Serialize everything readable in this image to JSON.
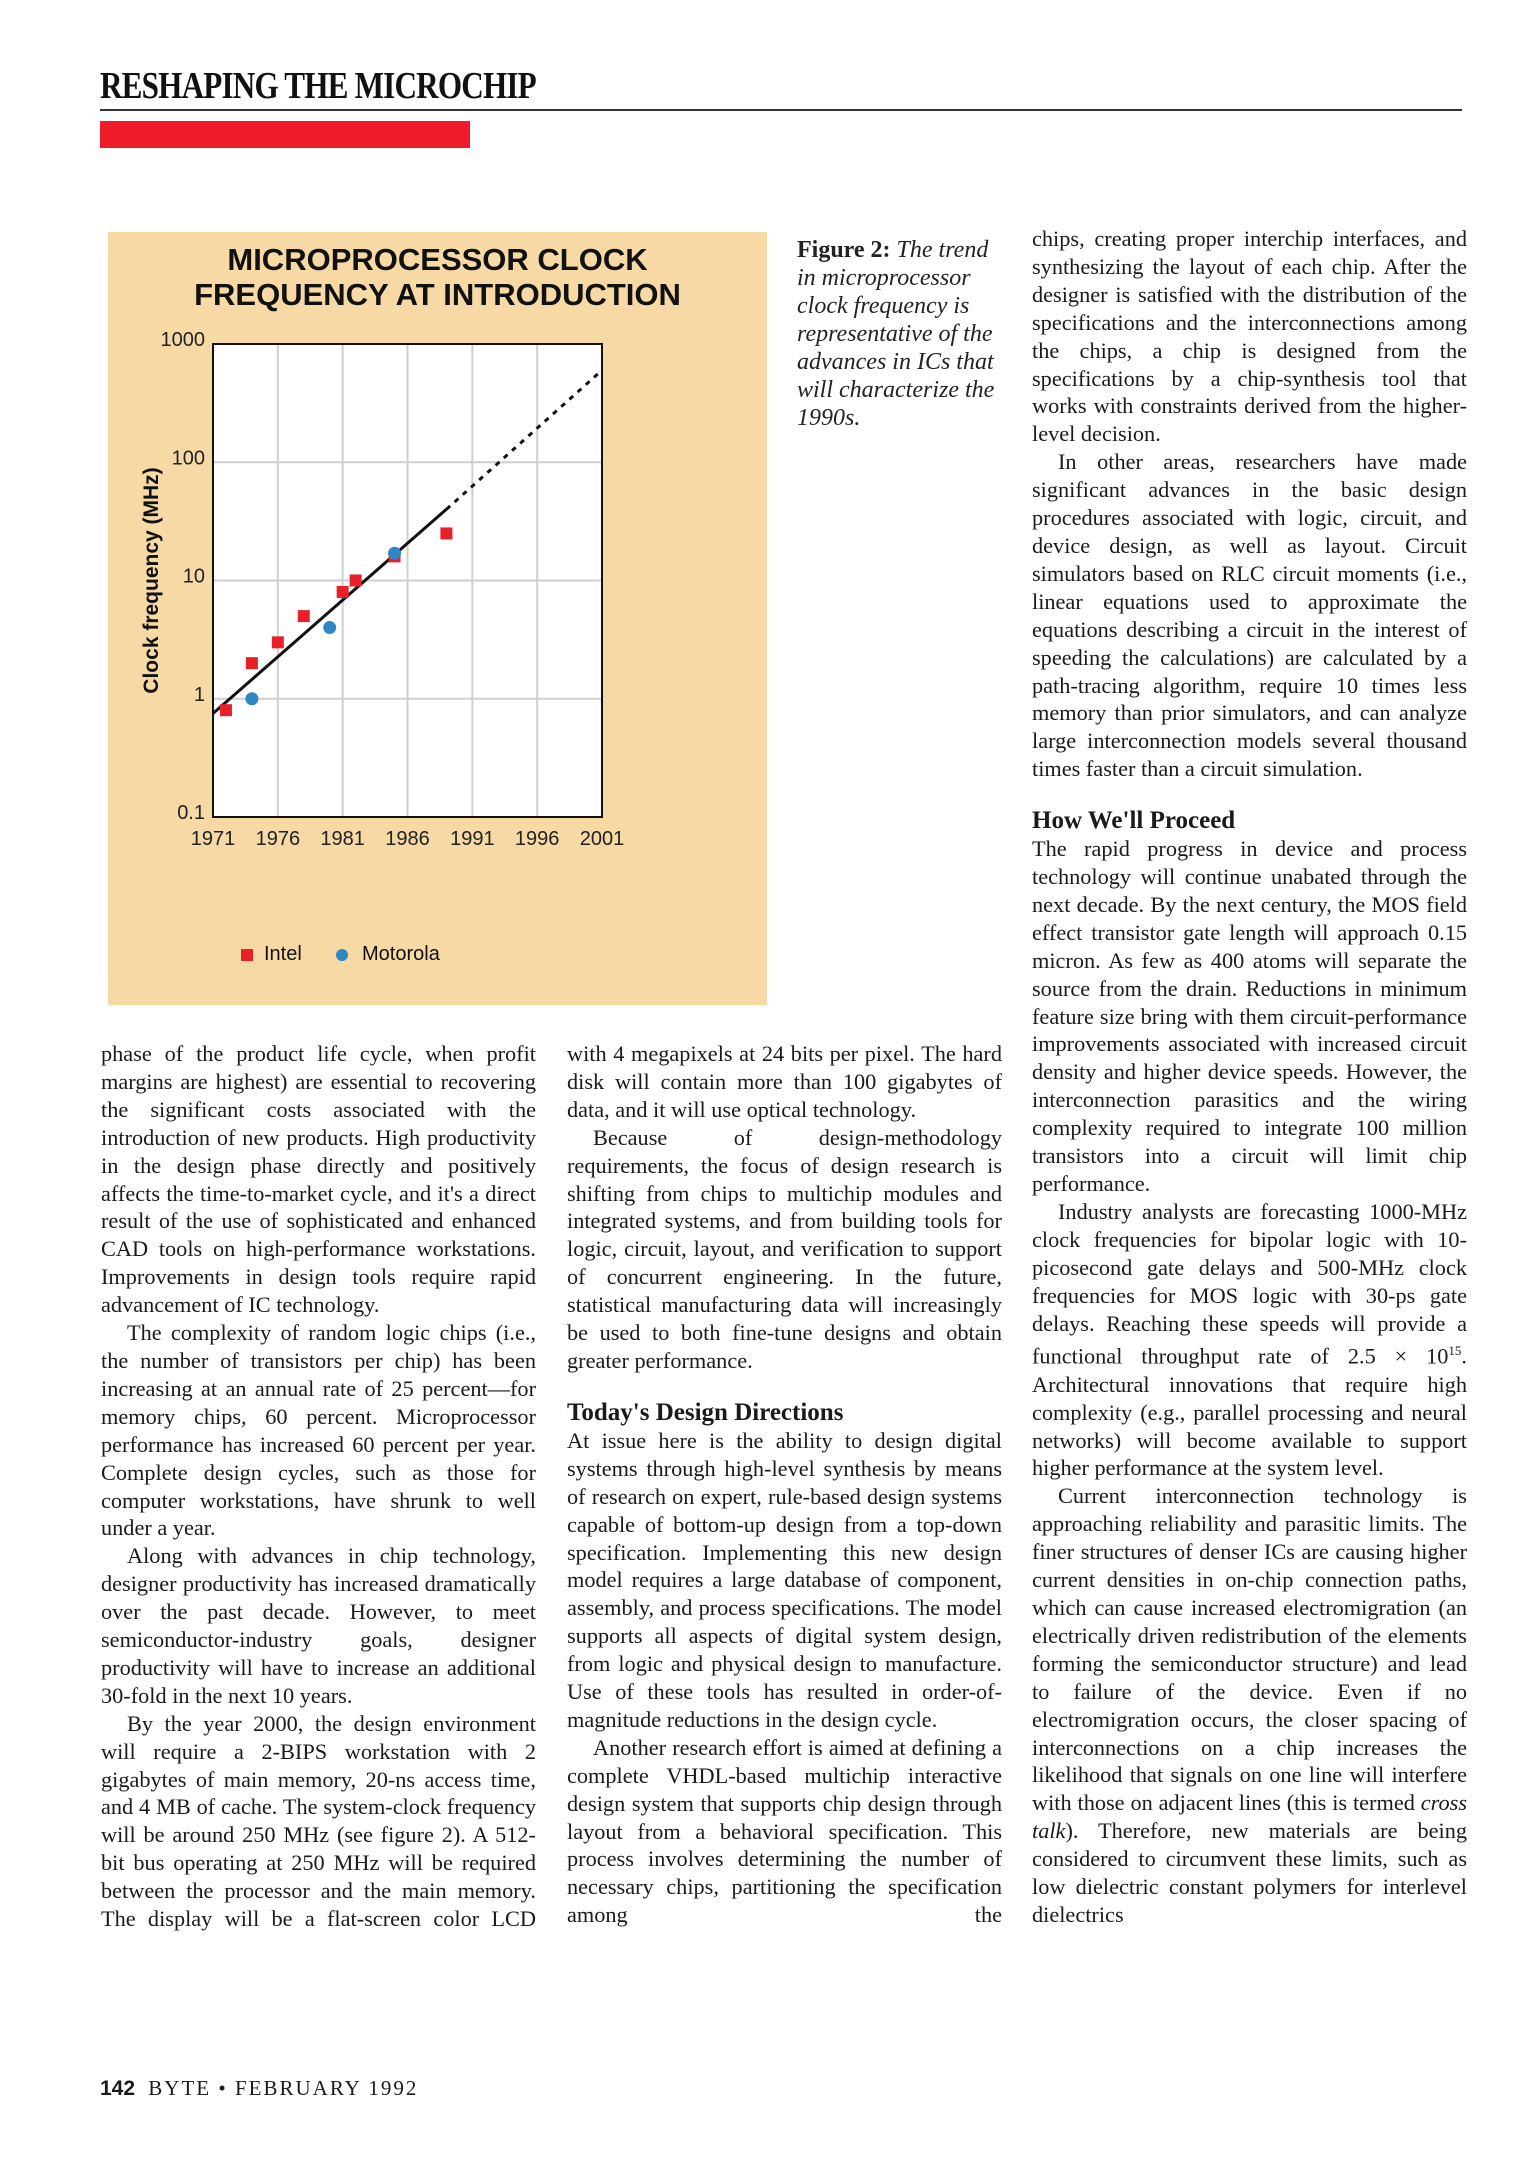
{
  "header": {
    "section_title": "RESHAPING THE MICROCHIP",
    "accent_color": "#ee1c2a"
  },
  "figure": {
    "title_line1": "MICROPROCESSOR CLOCK",
    "title_line2": "FREQUENCY AT INTRODUCTION",
    "caption_label": "Figure 2:",
    "caption_text": "The trend in microprocessor clock frequency is representative of the advances in ICs that will characterize the 1990s."
  },
  "chart_data": {
    "type": "scatter",
    "title": "MICROPROCESSOR CLOCK FREQUENCY AT INTRODUCTION",
    "xlabel": "",
    "ylabel": "Clock frequency (MHz)",
    "xlim": [
      1971,
      2001
    ],
    "ylim": [
      0.1,
      1000
    ],
    "yscale": "log",
    "grid": true,
    "legend_position": "bottom",
    "x_ticks": [
      "1971",
      "1976",
      "1981",
      "1986",
      "1991",
      "1996",
      "2001"
    ],
    "y_ticks": [
      "0.1",
      "1",
      "10",
      "100",
      "1000"
    ],
    "background_color": "#f6d9a4",
    "series": [
      {
        "name": "Intel",
        "marker": "square",
        "color": "#e8202a",
        "points": [
          [
            1972,
            0.8
          ],
          [
            1974,
            2
          ],
          [
            1976,
            3
          ],
          [
            1978,
            5
          ],
          [
            1981,
            8
          ],
          [
            1982,
            10
          ],
          [
            1985,
            16
          ],
          [
            1989,
            25
          ]
        ]
      },
      {
        "name": "Motorola",
        "marker": "circle",
        "color": "#2f86c4",
        "points": [
          [
            1974,
            1
          ],
          [
            1980,
            4
          ],
          [
            1985,
            17
          ]
        ]
      }
    ],
    "trend": {
      "solid": [
        [
          1971,
          0.75
        ],
        [
          1989,
          40
        ]
      ],
      "dashed": [
        [
          1989,
          40
        ],
        [
          2001,
          600
        ]
      ]
    }
  },
  "columns": {
    "col1": [
      "phase of the product life cycle, when profit margins are highest) are essential to recovering the significant costs associated with the introduction of new products. High productivity in the design phase directly and positively affects the time-to-market cycle, and it's a direct result of the use of sophisticated and enhanced CAD tools on high-performance workstations. Improvements in design tools require rapid advancement of IC technology.",
      "The complexity of random logic chips (i.e., the number of transistors per chip) has been increasing at an annual rate of 25 percent—for memory chips, 60 percent. Microprocessor performance has increased 60 percent per year. Complete design cycles, such as those for computer workstations, have shrunk to well under a year.",
      "Along with advances in chip technology, designer productivity has increased dramatically over the past decade. However, to meet semiconductor-industry goals, designer productivity will have to increase an additional 30-fold in the next 10 years.",
      "By the year 2000, the design environment will require a 2-BIPS workstation with 2 gigabytes of main memory, 20-ns access time, and 4 MB of cache. The system-clock frequency will be around 250 MHz (see figure 2). A 512-bit bus operating at 250 MHz will be required between the processor and the main memory. The display will be a flat-screen color LCD"
    ],
    "col2": [
      "with 4 megapixels at 24 bits per pixel. The hard disk will contain more than 100 gigabytes of data, and it will use optical technology.",
      "Because of design-methodology requirements, the focus of design research is shifting from chips to multichip modules and integrated systems, and from building tools for logic, circuit, layout, and verification to support of concurrent engineering. In the future, statistical manufacturing data will increasingly be used to both fine-tune designs and obtain greater performance.",
      "At issue here is the ability to design digital systems through high-level synthesis by means of research on expert, rule-based design systems capable of bottom-up design from a top-down specification. Implementing this new design model requires a large database of component, assembly, and process specifications. The model supports all aspects of digital system design, from logic and physical design to manufacture. Use of these tools has resulted in order-of-magnitude reductions in the design cycle.",
      "Another research effort is aimed at defining a complete VHDL-based multichip interactive design system that supports chip design through layout from a behavioral specification. This process involves determining the number of necessary chips, partitioning the specification among the"
    ],
    "col2_heading": "Today's Design Directions",
    "col3": [
      "chips, creating proper interchip interfaces, and synthesizing the layout of each chip. After the designer is satisfied with the distribution of the specifications and the interconnections among the chips, a chip is designed from the specifications by a chip-synthesis tool that works with constraints derived from the higher-level decision.",
      "In other areas, researchers have made significant advances in the basic design procedures associated with logic, circuit, and device design, as well as layout. Circuit simulators based on RLC circuit moments (i.e., linear equations used to approximate the equations describing a circuit in the interest of speeding the calculations) are calculated by a path-tracing algorithm, require 10 times less memory than prior simulators, and can analyze large interconnection models several thousand times faster than a circuit simulation.",
      "The rapid progress in device and process technology will continue unabated through the next decade. By the next century, the MOS field effect transistor gate length will approach 0.15 micron. As few as 400 atoms will separate the source from the drain. Reductions in minimum feature size bring with them circuit-performance improvements associated with increased circuit density and higher device speeds. However, the interconnection parasitics and the wiring complexity required to integrate 100 million transistors into a circuit will limit chip performance."
    ],
    "col3_heading": "How We'll Proceed",
    "col3_p4": {
      "a": "Industry analysts are forecasting 1000-MHz clock frequencies for bipolar logic with 10-picosecond gate delays and 500-MHz clock frequencies for MOS logic with 30-ps gate delays. Reaching these speeds will provide a functional throughput rate of 2.5 × 10",
      "sup": "15",
      "b": ". Architectural innovations that require high complexity (e.g., parallel processing and neural networks) will become available to support higher performance at the system level."
    },
    "col3_p5": {
      "a": "Current interconnection technology is approaching reliability and parasitic limits. The finer structures of denser ICs are causing higher current densities in on-chip connection paths, which can cause increased electromigration (an electrically driven redistribution of the elements forming the semiconductor structure) and lead to failure of the device. Even if no electromigration occurs, the closer spacing of interconnections on a chip increases the likelihood that signals on one line will interfere with those on adjacent lines (this is termed ",
      "em": "cross talk",
      "b": "). Therefore, new materials are being considered to circumvent these limits, such as low dielectric constant polymers for interlevel dielectrics"
    }
  },
  "footer": {
    "page_number": "142",
    "magazine": "BYTE",
    "separator": "•",
    "date": "FEBRUARY 1992"
  }
}
